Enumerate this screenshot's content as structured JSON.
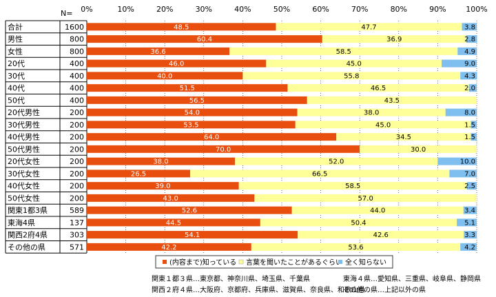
{
  "chart_data": {
    "type": "bar",
    "orientation": "horizontal",
    "stacked": "percent",
    "n_label": "N=",
    "x_ticks": [
      "0%",
      "10%",
      "20%",
      "30%",
      "40%",
      "50%",
      "60%",
      "70%",
      "80%",
      "90%",
      "100%"
    ],
    "xlim": [
      0,
      100
    ],
    "categories": [
      "合計",
      "男性",
      "女性",
      "20代",
      "30代",
      "40代",
      "50代",
      "20代男性",
      "30代男性",
      "40代男性",
      "50代男性",
      "20代女性",
      "30代女性",
      "40代女性",
      "50代女性",
      "関東1都3県",
      "東海4県",
      "関西2府4県",
      "その他の県"
    ],
    "n": [
      1600,
      800,
      800,
      400,
      400,
      400,
      400,
      200,
      200,
      200,
      200,
      200,
      200,
      200,
      200,
      589,
      137,
      303,
      571
    ],
    "series": [
      {
        "name": "(内容まで)知っている",
        "color": "#E84F0F",
        "values": [
          48.5,
          60.4,
          36.6,
          46.0,
          40.0,
          51.5,
          56.5,
          54.0,
          53.5,
          64.0,
          70.0,
          38.0,
          26.5,
          39.0,
          43.0,
          52.6,
          44.5,
          54.1,
          42.2
        ]
      },
      {
        "name": "言葉を聞いたことがあるぐらい",
        "color": "#FFFF99",
        "values": [
          47.7,
          36.9,
          58.5,
          45.0,
          55.8,
          46.5,
          43.5,
          38.0,
          45.0,
          34.5,
          30.0,
          52.0,
          66.5,
          58.5,
          57.0,
          44.0,
          50.4,
          42.6,
          53.6
        ]
      },
      {
        "name": "全く知らない",
        "color": "#7FBFEF",
        "values": [
          3.8,
          2.8,
          4.9,
          9.0,
          4.3,
          2.0,
          null,
          8.0,
          1.5,
          1.5,
          null,
          10.0,
          7.0,
          2.5,
          null,
          3.4,
          5.1,
          3.3,
          4.2
        ]
      }
    ],
    "value_labels": [
      [
        "48.5",
        "47.7",
        "3.8"
      ],
      [
        "60.4",
        "36.9",
        "2.8"
      ],
      [
        "36.6",
        "58.5",
        "4.9"
      ],
      [
        "46.0",
        "45.0",
        "9.0"
      ],
      [
        "40.0",
        "55.8",
        "4.3"
      ],
      [
        "51.5",
        "46.5",
        "2.0"
      ],
      [
        "56.5",
        "43.5",
        ""
      ],
      [
        "54.0",
        "38.0",
        "8.0"
      ],
      [
        "53.5",
        "45.0",
        "1.5"
      ],
      [
        "64.0",
        "34.5",
        "1.5"
      ],
      [
        "70.0",
        "30.0",
        ""
      ],
      [
        "38.0",
        "52.0",
        "10.0"
      ],
      [
        "26.5",
        "66.5",
        "7.0"
      ],
      [
        "39.0",
        "58.5",
        "2.5"
      ],
      [
        "43.0",
        "57.0",
        ""
      ],
      [
        "52.6",
        "44.0",
        "3.4"
      ],
      [
        "44.5",
        "50.4",
        "5.1"
      ],
      [
        "54.1",
        "42.6",
        "3.3"
      ],
      [
        "42.2",
        "53.6",
        "4.2"
      ]
    ],
    "legend_position": "bottom-center",
    "grid": true
  },
  "notes": [
    [
      "関東１都３県…東京都、神奈川県、埼玉県、千葉県",
      "東海４県…愛知県、三重県、岐阜県、静岡県"
    ],
    [
      "関西２府４県…大阪府、京都府、兵庫県、滋賀県、奈良県、和歌山県",
      "その他の県…上記以外の県"
    ]
  ]
}
